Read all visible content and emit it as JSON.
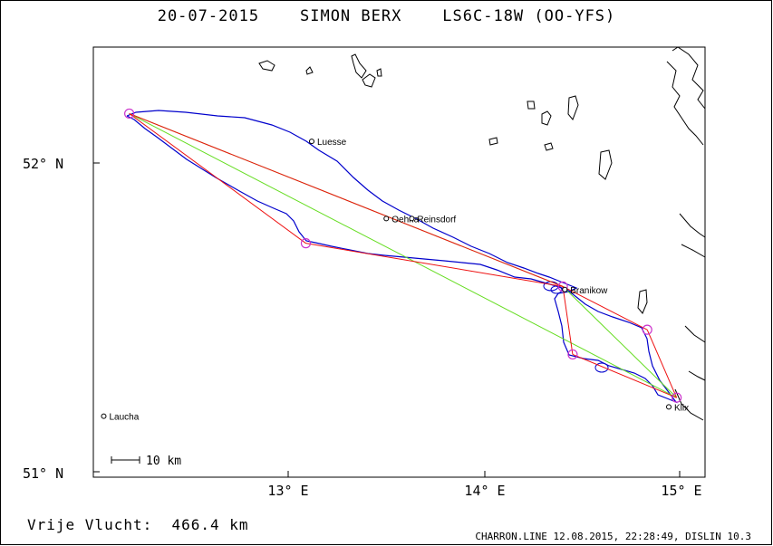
{
  "header": {
    "title": "20-07-2015    SIMON BERX    LS6C-18W (OO-YFS)"
  },
  "axes": {
    "lat_labels": [
      {
        "text": "52° N",
        "lat": 52.0
      },
      {
        "text": "51° N",
        "lat": 51.0
      }
    ],
    "lon_labels": [
      {
        "text": "13° E",
        "lon": 13.0
      },
      {
        "text": "14° E",
        "lon": 14.0
      },
      {
        "text": "15° E",
        "lon": 15.0
      }
    ]
  },
  "scale_bar": {
    "label": "10 km"
  },
  "places": [
    {
      "name": "Luesse",
      "lon": 13.12,
      "lat": 52.07
    },
    {
      "name": "Oehna",
      "lon": 13.5,
      "lat": 51.82
    },
    {
      "name": "Reinsdorf",
      "lon": 13.63,
      "lat": 51.82
    },
    {
      "name": "Branikow",
      "lon": 14.41,
      "lat": 51.59
    },
    {
      "name": "Klix",
      "lon": 14.94,
      "lat": 51.21
    },
    {
      "name": "Laucha",
      "lon": 12.06,
      "lat": 51.18
    }
  ],
  "route": {
    "turnpoints": [
      {
        "lon": 12.19,
        "lat": 52.16
      },
      {
        "lon": 13.09,
        "lat": 51.74
      },
      {
        "lon": 14.4,
        "lat": 51.6
      },
      {
        "lon": 14.83,
        "lat": 51.46
      },
      {
        "lon": 14.98,
        "lat": 51.24
      },
      {
        "lon": 14.45,
        "lat": 51.38
      }
    ],
    "red_sequence": [
      0,
      1,
      2,
      3,
      4,
      5,
      2,
      0
    ],
    "green_sequence": [
      0,
      4,
      2,
      0
    ],
    "colors": {
      "task": "#ee1111",
      "fai": "#66dd22",
      "track": "#0000cc",
      "turnpoint": "#cc33cc"
    }
  },
  "footer": {
    "distance_text": "Vrije Vlucht:  466.4 km",
    "software_text": "CHARRON.LINE 12.08.2015, 22:28:49, DISLIN 10.3"
  }
}
